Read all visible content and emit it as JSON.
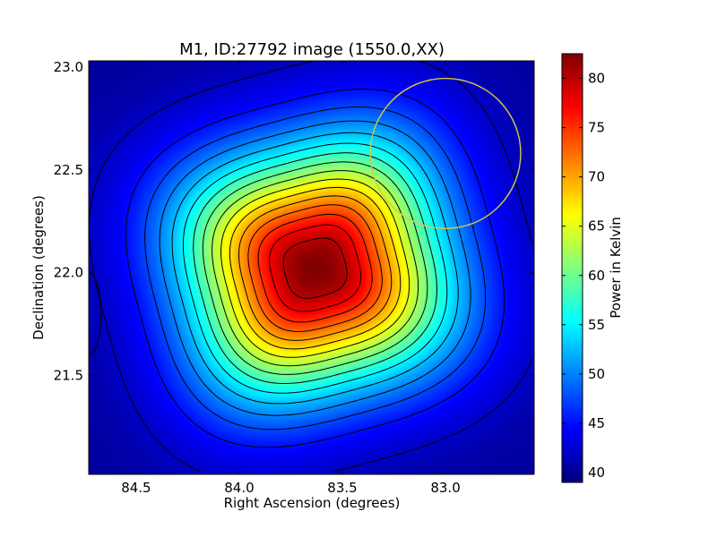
{
  "chart_data": {
    "type": "heatmap",
    "title": "M1, ID:27792 image (1550.0,XX)",
    "xlabel": "Right Ascension (degrees)",
    "ylabel": "Declination (degrees)",
    "xlim": [
      84.73,
      82.57
    ],
    "ylim": [
      21.02,
      23.03
    ],
    "x_ticks": [
      84.5,
      84.0,
      83.5,
      83.0
    ],
    "x_tick_labels": [
      "84.5",
      "84.0",
      "83.5",
      "83.0"
    ],
    "y_ticks": [
      21.5,
      22.0,
      22.5,
      23.0
    ],
    "y_tick_labels": [
      "21.5",
      "22.0",
      "22.5",
      "23.0"
    ],
    "colormap": "jet",
    "value_range": [
      39,
      82.5
    ],
    "background_value": 40,
    "peak": {
      "ra": 83.63,
      "dec": 22.02,
      "value": 82.5
    },
    "grid": false,
    "colorbar": {
      "label": "Power in Kelvin",
      "ticks": [
        40,
        45,
        50,
        55,
        60,
        65,
        70,
        75,
        80
      ],
      "tick_labels": [
        "40",
        "45",
        "50",
        "55",
        "60",
        "65",
        "70",
        "75",
        "80"
      ]
    },
    "contours": {
      "levels": [
        42,
        45,
        47.5,
        50,
        52.5,
        55,
        57.5,
        60,
        62.5,
        65,
        67.5,
        70,
        72.5,
        75,
        77.5,
        80
      ],
      "color": "#000000"
    },
    "edge_contour": {
      "ra": 84.73,
      "dec": 21.8,
      "half_height_deg": 0.2
    },
    "marker_circle": {
      "ra": 83.0,
      "dec": 22.58,
      "radius_deg": 0.365,
      "color": "#d4c84a"
    }
  }
}
